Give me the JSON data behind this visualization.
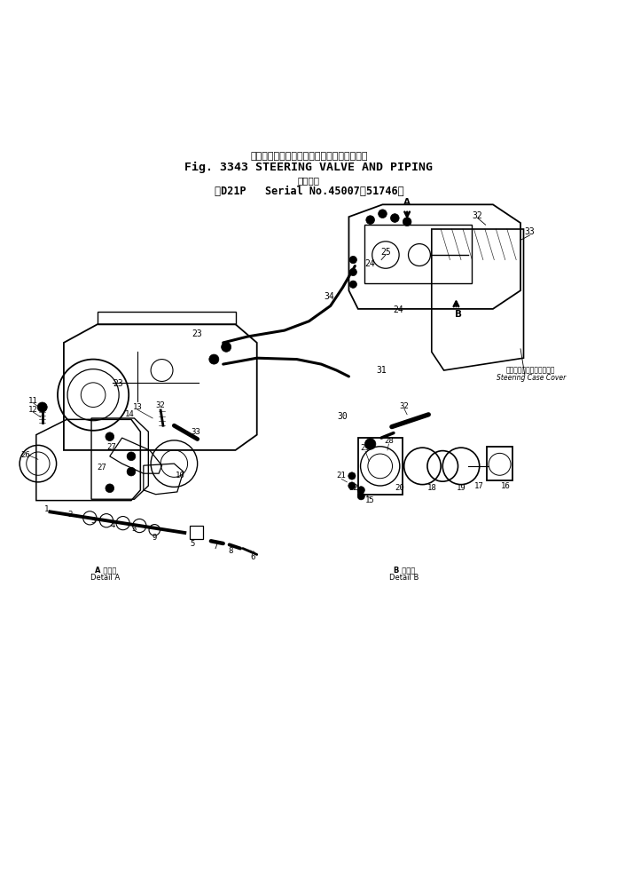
{
  "title_jp": "ステアリング　バルブ　および　パイピング",
  "title_en": "Fig. 3343 STEERING VALVE AND PIPING",
  "subtitle_jp": "適用号機",
  "subtitle_en": "D21P  Serial No.45007~51746",
  "bg_color": "#ffffff",
  "text_color": "#000000",
  "fig_width": 6.97,
  "fig_height": 10.0,
  "dpi": 100
}
